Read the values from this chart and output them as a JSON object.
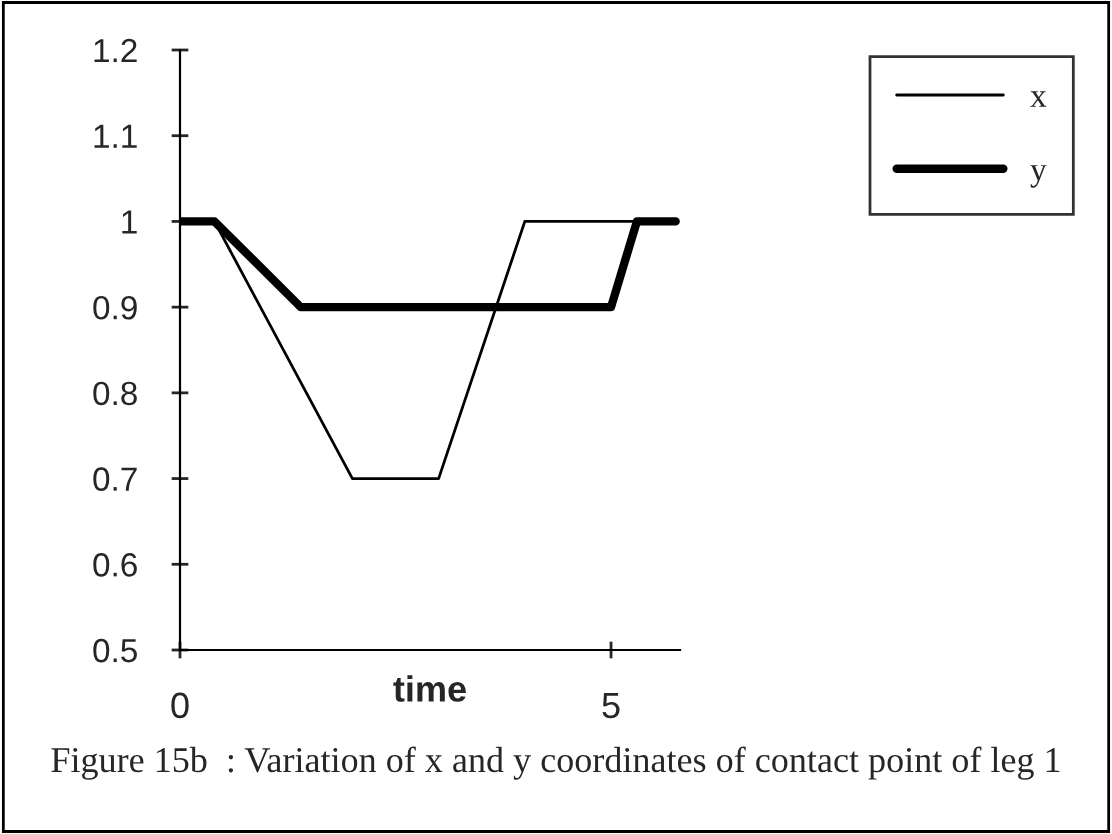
{
  "chart_data": {
    "type": "line",
    "xlabel": "time",
    "x": [
      0,
      0.4,
      2,
      3,
      4,
      5.75
    ],
    "series": [
      {
        "name": "x",
        "color": "#000000",
        "values": [
          1,
          1,
          0.7,
          0.7,
          1,
          1
        ]
      },
      {
        "name": "y",
        "color": "#000000",
        "x": [
          0,
          0.4,
          1.4,
          5,
          5.3,
          5.75
        ],
        "values": [
          1,
          1,
          0.9,
          0.9,
          1,
          1
        ]
      }
    ],
    "xlim": [
      0,
      5.8
    ],
    "xticks": [
      0,
      5
    ],
    "ylim": [
      0.5,
      1.2
    ],
    "yticks": [
      0.5,
      0.6,
      0.7,
      0.8,
      0.9,
      1,
      1.1,
      1.2
    ],
    "grid": false,
    "legend": "top right",
    "marker": "none",
    "line_style": "solid",
    "annotations": [
      "Figure 15b  : Variation of x and y coordinates of contact point of leg 1"
    ]
  }
}
